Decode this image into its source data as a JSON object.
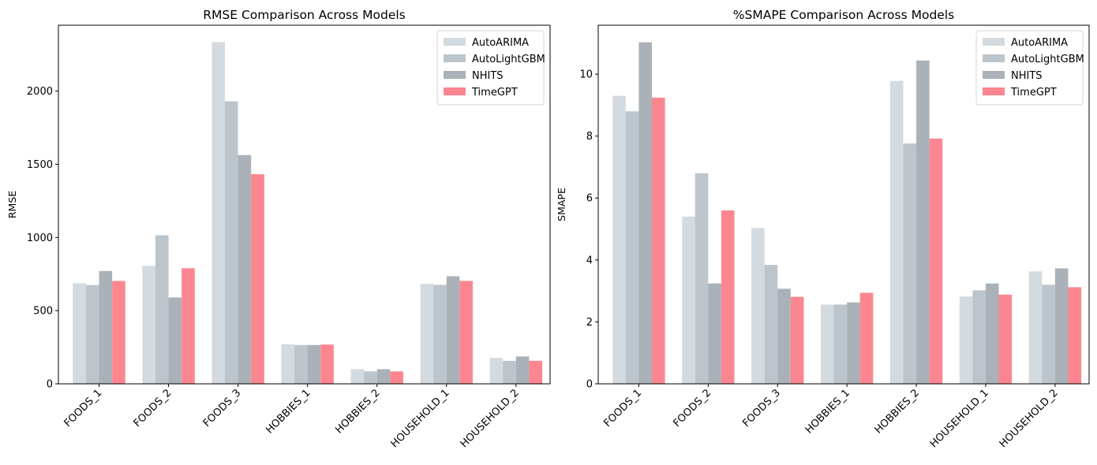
{
  "chart_data": [
    {
      "type": "bar",
      "title": "RMSE Comparison Across Models",
      "xlabel": "",
      "ylabel": "RMSE",
      "ylim": [
        0,
        2450
      ],
      "yticks": [
        0,
        500,
        1000,
        1500,
        2000
      ],
      "grid": false,
      "legend_position": "top-right",
      "categories": [
        "FOODS_1",
        "FOODS_2",
        "FOODS_3",
        "HOBBIES_1",
        "HOBBIES_2",
        "HOUSEHOLD_1",
        "HOUSEHOLD_2"
      ],
      "series": [
        {
          "name": "AutoARIMA",
          "color": "#d3dae0",
          "values": [
            687,
            806,
            2335,
            270,
            100,
            683,
            177
          ]
        },
        {
          "name": "AutoLightGBM",
          "color": "#bcc4cc",
          "values": [
            675,
            1015,
            1930,
            265,
            85,
            676,
            157
          ]
        },
        {
          "name": "NHITS",
          "color": "#aab1b8",
          "values": [
            771,
            590,
            1563,
            265,
            100,
            735,
            187
          ]
        },
        {
          "name": "TimeGPT",
          "color": "#fb8690",
          "values": [
            703,
            790,
            1432,
            268,
            85,
            703,
            157
          ]
        }
      ]
    },
    {
      "type": "bar",
      "title": "%SMAPE Comparison Across Models",
      "xlabel": "",
      "ylabel": "SMAPE",
      "ylim": [
        0,
        11.58
      ],
      "yticks": [
        0,
        2,
        4,
        6,
        8,
        10
      ],
      "grid": false,
      "legend_position": "top-right",
      "categories": [
        "FOODS_1",
        "FOODS_2",
        "FOODS_3",
        "HOBBIES_1",
        "HOBBIES_2",
        "HOUSEHOLD_1",
        "HOUSEHOLD_2"
      ],
      "series": [
        {
          "name": "AutoARIMA",
          "color": "#d3dae0",
          "values": [
            9.3,
            5.4,
            5.03,
            2.56,
            9.78,
            2.82,
            3.63
          ]
        },
        {
          "name": "AutoLightGBM",
          "color": "#bcc4cc",
          "values": [
            8.8,
            6.8,
            3.84,
            2.56,
            7.76,
            3.02,
            3.2
          ]
        },
        {
          "name": "NHITS",
          "color": "#aab1b8",
          "values": [
            11.03,
            3.24,
            3.07,
            2.63,
            10.44,
            3.24,
            3.73
          ]
        },
        {
          "name": "TimeGPT",
          "color": "#fb8690",
          "values": [
            9.24,
            5.6,
            2.81,
            2.94,
            7.92,
            2.88,
            3.12
          ]
        }
      ]
    }
  ]
}
